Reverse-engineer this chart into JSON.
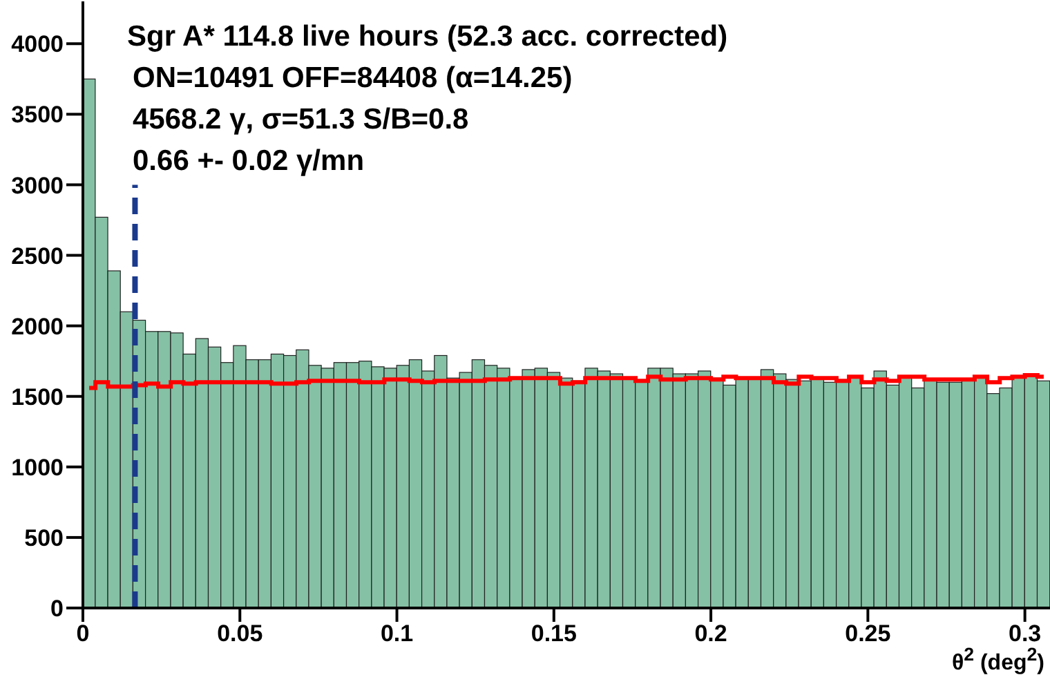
{
  "chart_data": {
    "type": "histogram",
    "xlabel": "θ$^{2}$ (deg$^{2}$)",
    "annotations": [
      "Sgr A* 114.8 live hours (52.3 acc. corrected)",
      "ON=10491 OFF=84408  (α=14.25)",
      "4568.2 γ, σ=51.3 S/B=0.8",
      "0.66 +- 0.02 γ/mn"
    ],
    "bins": [
      0,
      0.004,
      0.008,
      0.012,
      0.016,
      0.02,
      0.024,
      0.028,
      0.032,
      0.036,
      0.04,
      0.044,
      0.048,
      0.052,
      0.056,
      0.06,
      0.064,
      0.068,
      0.072,
      0.076,
      0.08,
      0.084,
      0.088,
      0.092,
      0.096,
      0.1,
      0.104,
      0.108,
      0.112,
      0.116,
      0.12,
      0.124,
      0.128,
      0.132,
      0.136,
      0.14,
      0.144,
      0.148,
      0.152,
      0.156,
      0.16,
      0.164,
      0.168,
      0.172,
      0.176,
      0.18,
      0.184,
      0.188,
      0.192,
      0.196,
      0.2,
      0.204,
      0.208,
      0.212,
      0.216,
      0.22,
      0.224,
      0.228,
      0.232,
      0.236,
      0.24,
      0.244,
      0.248,
      0.252,
      0.256,
      0.26,
      0.264,
      0.268,
      0.272,
      0.276,
      0.28,
      0.284,
      0.288,
      0.292,
      0.296,
      0.3,
      0.304,
      0.308
    ],
    "xlim": [
      0,
      0.308
    ],
    "xticks": [
      0,
      0.05,
      0.1,
      0.15,
      0.2,
      0.25,
      0.3
    ],
    "ylim": [
      0,
      4300
    ],
    "yticks": [
      0,
      500,
      1000,
      1500,
      2000,
      2500,
      3000,
      3500,
      4000
    ],
    "grid": false,
    "legend": false,
    "series": [
      {
        "color": "#85c1a5",
        "values": [
          3750,
          2770,
          2390,
          2100,
          2040,
          1960,
          1960,
          1950,
          1800,
          1910,
          1850,
          1740,
          1860,
          1760,
          1760,
          1800,
          1790,
          1830,
          1720,
          1700,
          1740,
          1740,
          1750,
          1710,
          1700,
          1720,
          1760,
          1680,
          1790,
          1630,
          1670,
          1760,
          1720,
          1700,
          1620,
          1690,
          1700,
          1670,
          1630,
          1610,
          1700,
          1680,
          1660,
          1630,
          1610,
          1700,
          1700,
          1660,
          1660,
          1680,
          1630,
          1580,
          1630,
          1630,
          1690,
          1660,
          1620,
          1610,
          1630,
          1600,
          1610,
          1630,
          1560,
          1680,
          1580,
          1630,
          1560,
          1620,
          1600,
          1600,
          1620,
          1630,
          1520,
          1560,
          1630,
          1660,
          1610
        ]
      },
      {
        "type": "step",
        "color": "#ff0000",
        "x": [
          0.002,
          0.006,
          0.01,
          0.014,
          0.018,
          0.022,
          0.026,
          0.03,
          0.034,
          0.038,
          0.042,
          0.046,
          0.05,
          0.054,
          0.058,
          0.062,
          0.066,
          0.07,
          0.074,
          0.078,
          0.082,
          0.086,
          0.09,
          0.094,
          0.098,
          0.102,
          0.106,
          0.11,
          0.114,
          0.118,
          0.122,
          0.126,
          0.13,
          0.134,
          0.138,
          0.142,
          0.146,
          0.15,
          0.154,
          0.158,
          0.162,
          0.166,
          0.17,
          0.174,
          0.178,
          0.182,
          0.186,
          0.19,
          0.194,
          0.198,
          0.202,
          0.206,
          0.21,
          0.214,
          0.218,
          0.222,
          0.226,
          0.23,
          0.234,
          0.238,
          0.242,
          0.246,
          0.25,
          0.254,
          0.258,
          0.262,
          0.266,
          0.27,
          0.274,
          0.278,
          0.282,
          0.286,
          0.29,
          0.294,
          0.298,
          0.302,
          0.306
        ],
        "values": [
          1560,
          1600,
          1570,
          1570,
          1580,
          1590,
          1570,
          1600,
          1590,
          1600,
          1600,
          1600,
          1600,
          1600,
          1600,
          1590,
          1590,
          1600,
          1610,
          1610,
          1610,
          1610,
          1600,
          1600,
          1620,
          1620,
          1610,
          1600,
          1610,
          1610,
          1610,
          1610,
          1620,
          1620,
          1630,
          1630,
          1630,
          1630,
          1590,
          1600,
          1630,
          1630,
          1630,
          1630,
          1610,
          1640,
          1620,
          1620,
          1630,
          1630,
          1620,
          1640,
          1630,
          1630,
          1630,
          1600,
          1590,
          1640,
          1630,
          1630,
          1610,
          1640,
          1600,
          1620,
          1610,
          1640,
          1640,
          1620,
          1620,
          1620,
          1620,
          1640,
          1600,
          1630,
          1640,
          1650,
          1640
        ]
      },
      {
        "type": "line",
        "x": [
          0.0166,
          0.0166
        ],
        "values": [
          0,
          3000
        ],
        "color": "#1a3a8c",
        "line_style": "dashed"
      }
    ]
  }
}
